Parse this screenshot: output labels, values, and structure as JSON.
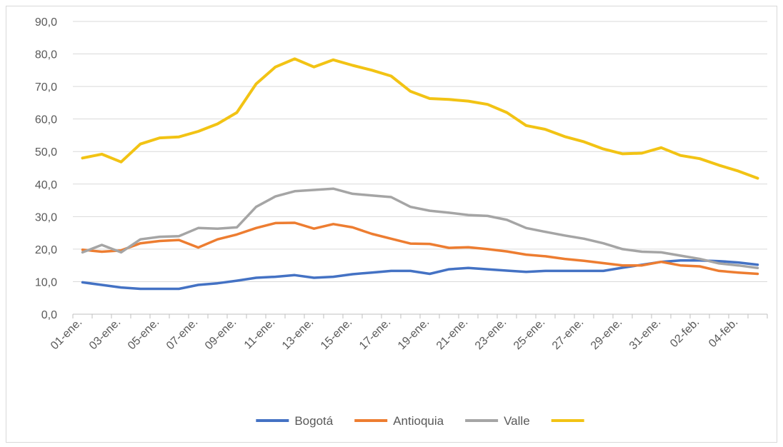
{
  "chart_data": {
    "type": "line",
    "title": "",
    "xlabel": "",
    "ylabel": "",
    "ylim": [
      0,
      90
    ],
    "y_ticks": [
      "0,0",
      "10,0",
      "20,0",
      "30,0",
      "40,0",
      "50,0",
      "60,0",
      "70,0",
      "80,0",
      "90,0"
    ],
    "x": [
      "01-ene.",
      "02-ene.",
      "03-ene.",
      "04-ene.",
      "05-ene.",
      "06-ene.",
      "07-ene.",
      "08-ene.",
      "09-ene.",
      "10-ene.",
      "11-ene.",
      "12-ene.",
      "13-ene.",
      "14-ene.",
      "15-ene.",
      "16-ene.",
      "17-ene.",
      "18-ene.",
      "19-ene.",
      "20-ene.",
      "21-ene.",
      "22-ene.",
      "23-ene.",
      "24-ene.",
      "25-ene.",
      "26-ene.",
      "27-ene.",
      "28-ene.",
      "29-ene.",
      "30-ene.",
      "31-ene.",
      "01-feb.",
      "02-feb.",
      "03-feb.",
      "04-feb.",
      "05-feb."
    ],
    "x_tick_labels": [
      "01-ene.",
      "03-ene.",
      "05-ene.",
      "07-ene.",
      "09-ene.",
      "11-ene.",
      "13-ene.",
      "15-ene.",
      "17-ene.",
      "19-ene.",
      "21-ene.",
      "23-ene.",
      "25-ene.",
      "27-ene.",
      "29-ene.",
      "31-ene.",
      "02-feb.",
      "04-feb."
    ],
    "grid": true,
    "legend_position": "bottom",
    "series": [
      {
        "name": "Bogotá",
        "color": "#4472C4",
        "values": [
          9.8,
          9.0,
          8.2,
          7.8,
          7.8,
          7.8,
          9.0,
          9.5,
          10.3,
          11.2,
          11.5,
          12.0,
          11.2,
          11.5,
          12.3,
          12.8,
          13.3,
          13.3,
          12.4,
          13.8,
          14.2,
          13.8,
          13.4,
          13.0,
          13.3,
          13.3,
          13.3,
          13.3,
          14.3,
          15.2,
          16.1,
          16.5,
          16.5,
          16.3,
          15.9,
          15.2
        ]
      },
      {
        "name": "Antioquia",
        "color": "#ED7D31",
        "values": [
          19.8,
          19.2,
          19.6,
          21.8,
          22.5,
          22.8,
          20.5,
          23.0,
          24.5,
          26.5,
          28.0,
          28.1,
          26.3,
          27.7,
          26.7,
          24.7,
          23.2,
          21.7,
          21.6,
          20.4,
          20.6,
          20.0,
          19.3,
          18.3,
          17.8,
          17.0,
          16.4,
          15.7,
          15.0,
          15.0,
          16.1,
          15.0,
          14.7,
          13.3,
          12.8,
          12.4
        ]
      },
      {
        "name": "Valle",
        "color": "#A5A5A5",
        "values": [
          19.0,
          21.3,
          19.0,
          23.0,
          23.8,
          24.0,
          26.5,
          26.3,
          26.7,
          33.0,
          36.2,
          37.8,
          38.2,
          38.6,
          37.0,
          36.5,
          36.0,
          33.0,
          31.8,
          31.2,
          30.5,
          30.2,
          29.0,
          26.5,
          25.3,
          24.2,
          23.2,
          21.8,
          20.0,
          19.2,
          19.0,
          18.0,
          17.0,
          15.6,
          15.0,
          14.2
        ]
      },
      {
        "name": "",
        "color": "#F2C314",
        "values": [
          48.0,
          49.2,
          46.8,
          52.3,
          54.2,
          54.5,
          56.2,
          58.5,
          62.0,
          70.8,
          76.0,
          78.5,
          76.0,
          78.2,
          76.5,
          75.0,
          73.2,
          68.5,
          66.3,
          66.0,
          65.5,
          64.5,
          62.0,
          58.0,
          56.8,
          54.6,
          53.0,
          50.8,
          49.3,
          49.5,
          51.2,
          48.8,
          47.8,
          45.8,
          44.0,
          41.8
        ]
      }
    ]
  }
}
